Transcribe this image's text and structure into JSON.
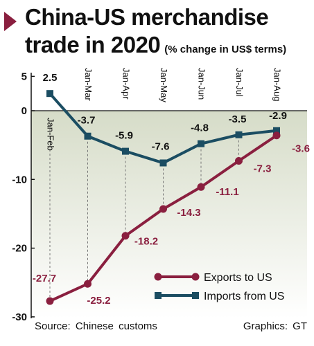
{
  "title_line1": "China-US merchandise",
  "title_line2": "trade in 2020",
  "subtitle": "(% change in US$ terms)",
  "source": "Source:  Chinese  customs",
  "credit": "Graphics:  GT",
  "colors": {
    "exports": "#8a1f3f",
    "imports": "#1b4d62",
    "accent": "#8a1f3f"
  },
  "chart_data": {
    "type": "line",
    "categories": [
      "Jan-Feb",
      "Jan-Mar",
      "Jan-Apr",
      "Jan-May",
      "Jan-Jun",
      "Jan-Jul",
      "Jan-Aug"
    ],
    "series": [
      {
        "name": "Exports to US",
        "marker": "circle",
        "values": [
          -27.7,
          -25.2,
          -18.2,
          -14.3,
          -11.1,
          -7.3,
          -3.6
        ],
        "labels": [
          "-27.7",
          "-25.2",
          "-18.2",
          "-14.3",
          "-11.1",
          "-7.3",
          "-3.6"
        ]
      },
      {
        "name": "Imports from US",
        "marker": "square",
        "values": [
          2.5,
          -3.7,
          -5.9,
          -7.6,
          -4.8,
          -3.5,
          -2.9
        ],
        "labels": [
          "2.5",
          "-3.7",
          "-5.9",
          "-7.6",
          "-4.8",
          "-3.5",
          "-2.9"
        ]
      }
    ],
    "yticks": [
      5,
      0,
      -10,
      -20,
      -30
    ],
    "ytick_labels": [
      "5",
      "0",
      "-10",
      "-20",
      "-30"
    ],
    "ylim": [
      -30,
      5
    ],
    "legend_position": "bottom-right",
    "grid": false
  }
}
